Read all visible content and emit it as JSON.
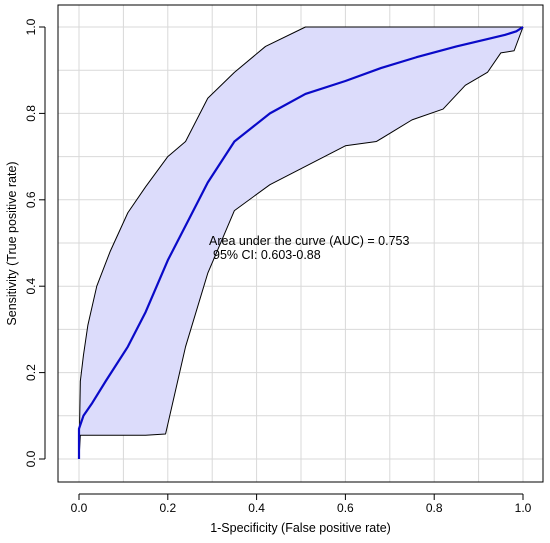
{
  "chart_data": {
    "type": "line",
    "title": "",
    "xlabel": "1-Specificity (False positive rate)",
    "ylabel": "Sensitivity (True positive rate)",
    "xlim": [
      0,
      1
    ],
    "ylim": [
      0,
      1
    ],
    "xticks": [
      "0.0",
      "0.2",
      "0.4",
      "0.6",
      "0.8",
      "1.0"
    ],
    "yticks": [
      "0.0",
      "0.2",
      "0.4",
      "0.6",
      "0.8",
      "1.0"
    ],
    "grid": true,
    "legend": "none",
    "annotations": [
      "Area under the curve (AUC) = 0.753",
      "95% CI: 0.603-0.88"
    ],
    "series": [
      {
        "role": "roc-curve",
        "color": "#0a0ac8",
        "x": [
          0.0,
          0.0,
          0.01,
          0.03,
          0.06,
          0.11,
          0.15,
          0.2,
          0.25,
          0.29,
          0.35,
          0.43,
          0.51,
          0.6,
          0.68,
          0.76,
          0.85,
          0.92,
          0.96,
          0.985,
          1.0
        ],
        "y": [
          0.0,
          0.07,
          0.1,
          0.13,
          0.18,
          0.26,
          0.34,
          0.46,
          0.56,
          0.64,
          0.735,
          0.8,
          0.845,
          0.875,
          0.905,
          0.93,
          0.955,
          0.972,
          0.982,
          0.99,
          1.0
        ]
      },
      {
        "role": "ci-upper",
        "color": "#000000",
        "x": [
          0.0,
          0.003,
          0.01,
          0.02,
          0.04,
          0.07,
          0.11,
          0.15,
          0.2,
          0.24,
          0.29,
          0.35,
          0.42,
          0.51,
          0.6,
          0.7,
          0.8,
          0.9,
          1.0
        ],
        "y": [
          0.0,
          0.18,
          0.24,
          0.31,
          0.4,
          0.48,
          0.57,
          0.63,
          0.7,
          0.735,
          0.835,
          0.895,
          0.955,
          1.0,
          1.0,
          1.0,
          1.0,
          1.0,
          1.0
        ]
      },
      {
        "role": "ci-lower",
        "color": "#000000",
        "x": [
          0.0,
          0.003,
          0.02,
          0.15,
          0.195,
          0.24,
          0.29,
          0.35,
          0.43,
          0.6,
          0.67,
          0.75,
          0.82,
          0.87,
          0.92,
          0.95,
          0.98,
          1.0
        ],
        "y": [
          0.0,
          0.055,
          0.055,
          0.055,
          0.058,
          0.26,
          0.43,
          0.575,
          0.635,
          0.725,
          0.735,
          0.785,
          0.81,
          0.865,
          0.895,
          0.94,
          0.945,
          1.0
        ]
      }
    ],
    "ci_band_color": "#dcdcfb"
  }
}
